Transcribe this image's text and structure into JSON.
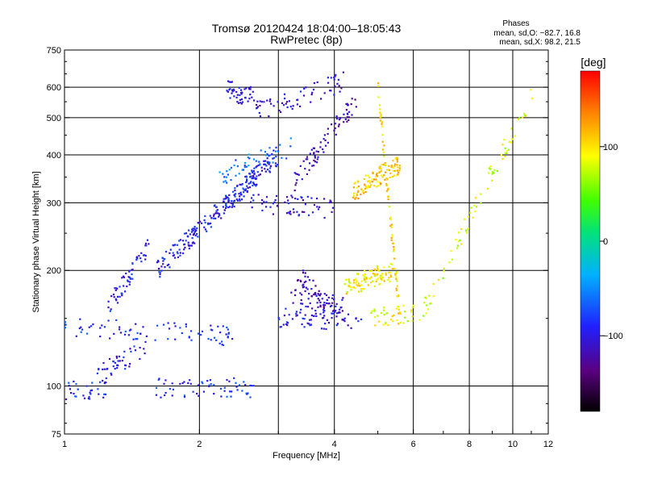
{
  "chart_data": {
    "type": "scatter",
    "title": "Tromsø 20120424 18:04:00–18:05:43",
    "subtitle": "RwPretec (8p)",
    "xlabel": "Frequency [MHz]",
    "ylabel": "Stationary phase Virtual Height [km]",
    "x_scale": "log",
    "y_scale": "log",
    "xlim": [
      1,
      12
    ],
    "ylim": [
      75,
      750
    ],
    "x_ticks": [
      {
        "value": 1,
        "label": "1"
      },
      {
        "value": 2,
        "label": "2"
      },
      {
        "value": 4,
        "label": "4"
      },
      {
        "value": 6,
        "label": "6"
      },
      {
        "value": 8,
        "label": "8"
      },
      {
        "value": 10,
        "label": "10"
      },
      {
        "value": 12,
        "label": "12"
      }
    ],
    "y_ticks": [
      {
        "value": 75,
        "label": "75"
      },
      {
        "value": 100,
        "label": "100"
      },
      {
        "value": 200,
        "label": "200"
      },
      {
        "value": 300,
        "label": "300"
      },
      {
        "value": 400,
        "label": "400"
      },
      {
        "value": 500,
        "label": "500"
      },
      {
        "value": 600,
        "label": "600"
      },
      {
        "value": 750,
        "label": "750"
      }
    ],
    "x_grid": [
      2,
      3,
      4,
      6,
      8,
      10
    ],
    "y_grid": [
      100,
      200,
      300,
      400,
      500,
      600
    ],
    "grid": true,
    "phases_header": "Phases",
    "phase_stats": [
      "mean, sd,O: −82.7, 16.8",
      "mean, sd,X:  98.2, 21.5"
    ],
    "colorbar": {
      "label": "[deg]",
      "range": [
        -180,
        180
      ],
      "ticks": [
        {
          "value": 100,
          "label": "100"
        },
        {
          "value": 0,
          "label": "0"
        },
        {
          "value": -100,
          "label": "−100"
        }
      ],
      "colormap": "rainbow (black-purple-blue-cyan-green-yellow-red)"
    },
    "traces": [
      {
        "f0": 1.0,
        "f1": 1.25,
        "h0": 98,
        "h1": 97,
        "phase": -90,
        "count": 30
      },
      {
        "f0": 1.6,
        "f1": 2.7,
        "h0": 99,
        "h1": 99,
        "phase": -85,
        "count": 60
      },
      {
        "f0": 1.18,
        "f1": 1.52,
        "h0": 107,
        "h1": 125,
        "phase": -95,
        "count": 45
      },
      {
        "f0": 1.0,
        "f1": 2.4,
        "h0": 143,
        "h1": 135,
        "phase": -90,
        "count": 80
      },
      {
        "f0": 1.25,
        "f1": 1.55,
        "h0": 160,
        "h1": 235,
        "phase": -95,
        "count": 60
      },
      {
        "f0": 2.3,
        "f1": 2.7,
        "h0": 590,
        "h1": 560,
        "phase": -100,
        "count": 50
      },
      {
        "f0": 2.7,
        "f1": 4.2,
        "h0": 520,
        "h1": 620,
        "phase": -110,
        "count": 60
      },
      {
        "f0": 3.2,
        "f1": 4.5,
        "h0": 330,
        "h1": 560,
        "phase": -115,
        "count": 80
      },
      {
        "f0": 2.6,
        "f1": 4.0,
        "h0": 300,
        "h1": 290,
        "phase": -105,
        "count": 60
      },
      {
        "f0": 3.0,
        "f1": 4.6,
        "h0": 150,
        "h1": 148,
        "phase": -100,
        "count": 70
      },
      {
        "f0": 3.2,
        "f1": 4.2,
        "h0": 175,
        "h1": 160,
        "phase": -110,
        "count": 60
      },
      {
        "f0": 3.3,
        "f1": 3.8,
        "h0": 200,
        "h1": 165,
        "phase": -120,
        "count": 30
      },
      {
        "f0": 4.4,
        "f1": 5.6,
        "h0": 320,
        "h1": 380,
        "phase": 110,
        "count": 110
      },
      {
        "f0": 4.2,
        "f1": 5.4,
        "h0": 180,
        "h1": 200,
        "phase": 95,
        "count": 100
      },
      {
        "f0": 5.0,
        "f1": 5.6,
        "h0": 600,
        "h1": 150,
        "phase": 100,
        "count": 70
      },
      {
        "f0": 4.8,
        "f1": 6.0,
        "h0": 150,
        "h1": 155,
        "phase": 90,
        "count": 40
      },
      {
        "f0": 1.6,
        "f1": 3.0,
        "h0": 200,
        "h1": 400,
        "phase": -95,
        "count": 250
      },
      {
        "f0": 2.2,
        "f1": 3.2,
        "h0": 350,
        "h1": 420,
        "phase": -60,
        "count": 50
      },
      {
        "f0": 6.0,
        "f1": 11.2,
        "h0": 140,
        "h1": 600,
        "phase": 80,
        "count": 80
      }
    ]
  }
}
